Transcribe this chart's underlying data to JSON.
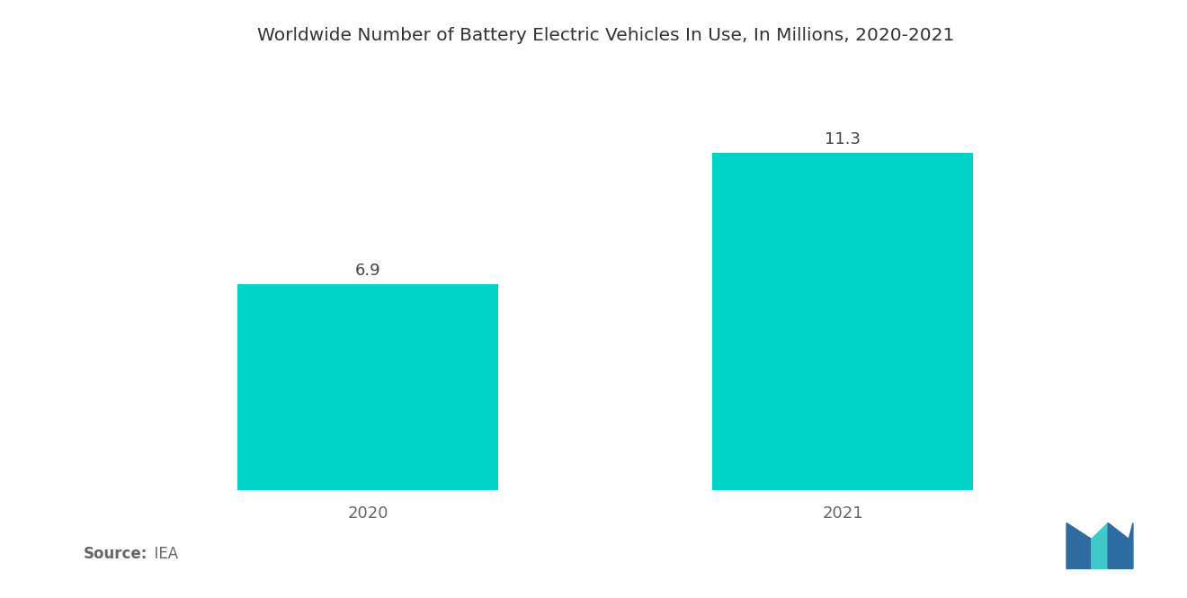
{
  "title": "Worldwide Number of Battery Electric Vehicles In Use, In Millions, 2020-2021",
  "categories": [
    "2020",
    "2021"
  ],
  "values": [
    6.9,
    11.3
  ],
  "bar_color": "#00D4C8",
  "bar_width": 0.55,
  "value_labels": [
    "6.9",
    "11.3"
  ],
  "background_color": "#ffffff",
  "source_label_bold": "Source:",
  "source_label_normal": "  IEA",
  "title_fontsize": 14.5,
  "label_fontsize": 13,
  "value_fontsize": 13,
  "source_fontsize": 12,
  "ylim": [
    0,
    14
  ],
  "xlim": [
    -0.6,
    1.6
  ],
  "logo_left_color": "#2D6BA0",
  "logo_right_color": "#3EC8C8",
  "logo_overlap_color": "#6BB8CC"
}
